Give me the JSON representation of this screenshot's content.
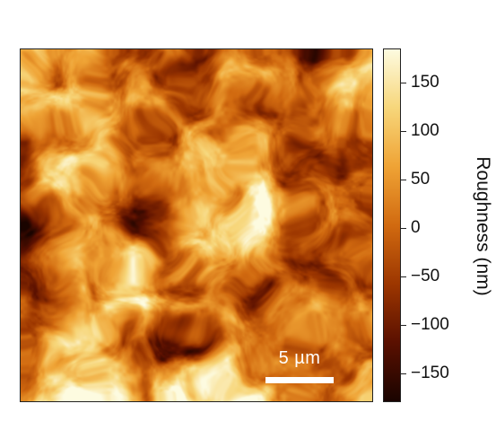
{
  "image": {
    "subject": "surface-roughness-map",
    "colormap": [
      "#1a0400",
      "#5a1000",
      "#9c3600",
      "#d16a10",
      "#efa335",
      "#f7d67a",
      "#fdfbe0"
    ]
  },
  "scale_bar": {
    "label": "5 µm"
  },
  "colorbar": {
    "title": "Roughness (nm)",
    "range": [
      -180,
      185
    ],
    "ticks": [
      {
        "value": 150,
        "label": "150"
      },
      {
        "value": 100,
        "label": "100"
      },
      {
        "value": 50,
        "label": "50"
      },
      {
        "value": 0,
        "label": "0"
      },
      {
        "value": -50,
        "label": "−50"
      },
      {
        "value": -100,
        "label": "−100"
      },
      {
        "value": -150,
        "label": "−150"
      }
    ]
  }
}
